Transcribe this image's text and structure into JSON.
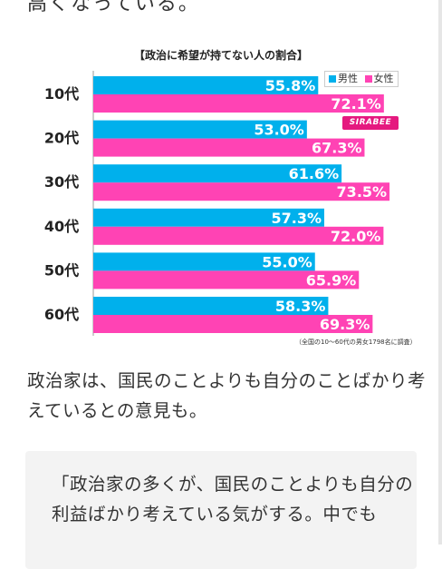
{
  "article": {
    "top_partial_text": "高くなっている。",
    "paragraph": "政治家は、国民のことよりも自分のことばかり考えているとの意見も。",
    "quote": "「政治家の多くが、国民のことよりも自分の利益ばかり考えている気がする。中でも"
  },
  "logo_text": "SIRABEE",
  "colors": {
    "male": "#00b0ec",
    "female": "#ff43b4",
    "label_text": "#ffffff",
    "category_text": "#222222"
  },
  "chart_data": {
    "type": "bar",
    "title": "【政治に希望が持てない人の割合】",
    "categories": [
      "10代",
      "20代",
      "30代",
      "40代",
      "50代",
      "60代"
    ],
    "series": [
      {
        "name": "男性",
        "values": [
          55.8,
          53.0,
          61.6,
          57.3,
          55.0,
          58.3
        ],
        "labels": [
          "55.8%",
          "53.0%",
          "61.6%",
          "57.3%",
          "55.0%",
          "58.3%"
        ]
      },
      {
        "name": "女性",
        "values": [
          72.1,
          67.3,
          73.5,
          72.0,
          65.9,
          69.3
        ],
        "labels": [
          "72.1%",
          "67.3%",
          "73.5%",
          "72.0%",
          "65.9%",
          "69.3%"
        ]
      }
    ],
    "orientation": "horizontal",
    "xlim": [
      0,
      100
    ],
    "grid": false,
    "legend_position": "top-right",
    "note": "（全国の10～60代の男女1798名に調査）"
  }
}
